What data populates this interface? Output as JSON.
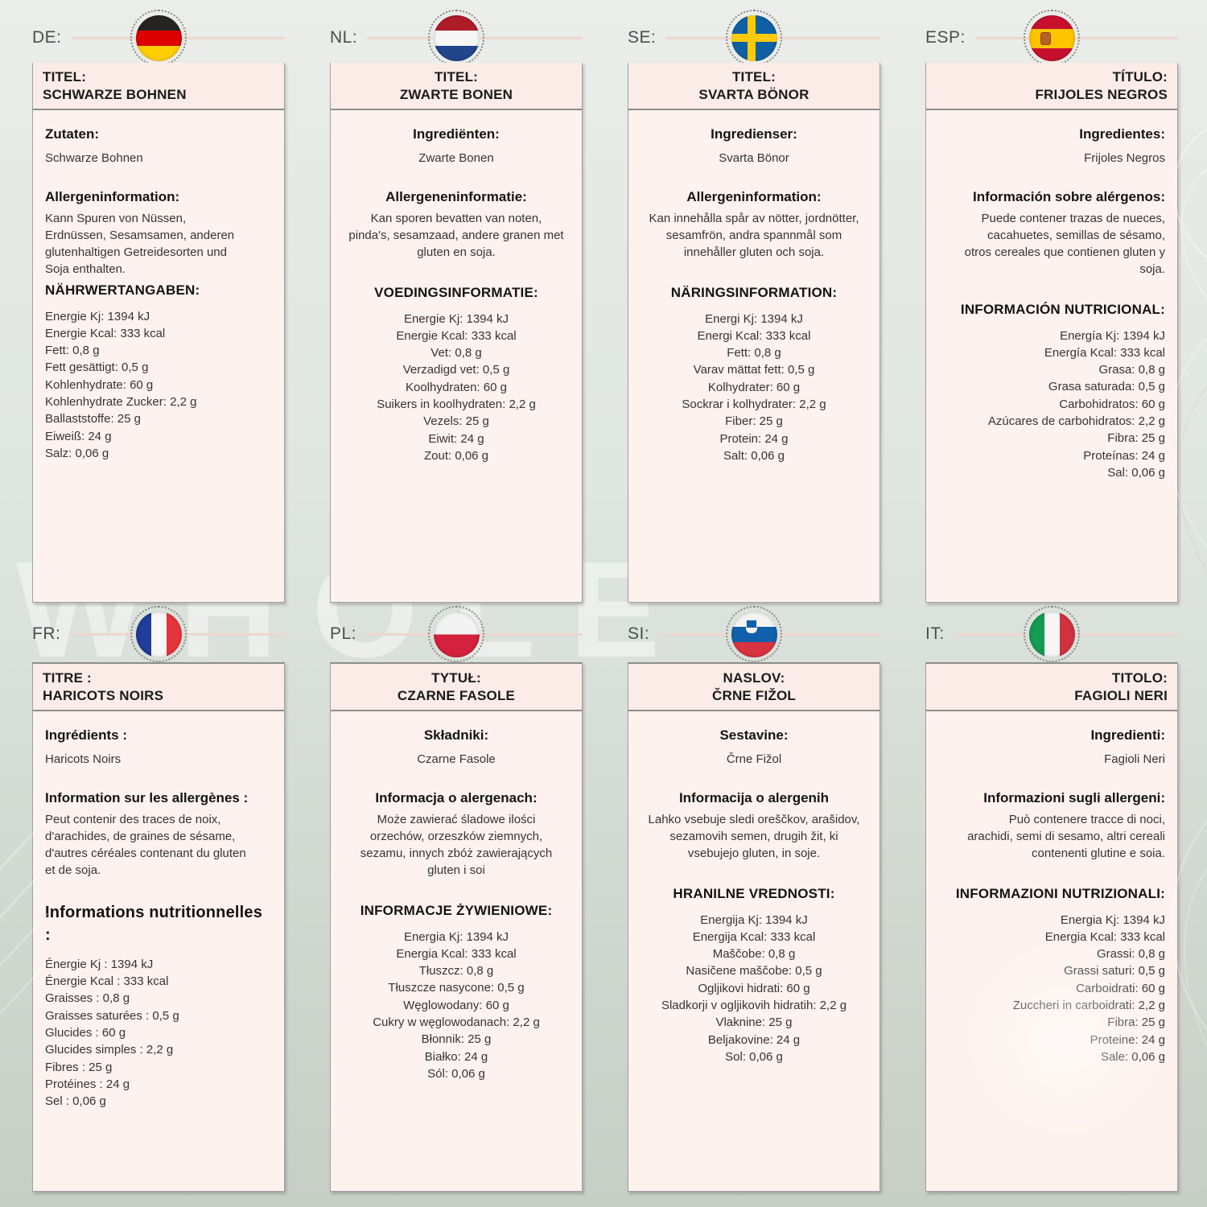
{
  "watermark_text": "WHOLE",
  "colors": {
    "background_top": "#eaede9",
    "background_bottom": "#c6cec6",
    "card_background": "#fdf2ee",
    "card_title_background": "#fbece7",
    "card_border": "#a2a19f",
    "header_line": "#edd6cf",
    "language_label": "#47504a"
  },
  "rows": [
    {
      "cards": [
        {
          "lang_label": "DE:",
          "flag": "germany",
          "title_label": "TITEL:",
          "title": "SCHWARZE BOHNEN",
          "ingredients_label": "Zutaten:",
          "ingredients": "Schwarze Bohnen",
          "allergens_label": "Allergeninformation:",
          "allergens": "Kann Spuren von Nüssen, Erdnüssen, Sesamsamen, anderen glutenhaltigen Getreidesorten und Soja enthalten.",
          "nutrition_label": "NÄHRWERTANGABEN:",
          "nutrition": [
            "Energie Kj: 1394 kJ",
            "Energie Kcal: 333 kcal",
            "Fett: 0,8 g",
            "Fett gesättigt: 0,5 g",
            "Kohlenhydrate: 60 g",
            "Kohlenhydrate Zucker: 2,2 g",
            "Ballaststoffe: 25 g",
            "Eiweiß: 24 g",
            "Salz: 0,06 g"
          ]
        },
        {
          "lang_label": "NL:",
          "flag": "netherlands",
          "title_label": "TITEL:",
          "title": "ZWARTE BONEN",
          "ingredients_label": "Ingrediënten:",
          "ingredients": "Zwarte Bonen",
          "allergens_label": "Allergeneninformatie:",
          "allergens": "Kan sporen bevatten van noten, pinda's, sesamzaad, andere granen met gluten en soja.",
          "nutrition_label": "VOEDINGSINFORMATIE:",
          "nutrition": [
            "Energie Kj: 1394 kJ",
            "Energie Kcal: 333 kcal",
            "Vet: 0,8 g",
            "Verzadigd vet: 0,5 g",
            "Koolhydraten: 60 g",
            "Suikers in koolhydraten: 2,2 g",
            "Vezels: 25 g",
            "Eiwit: 24 g",
            "Zout: 0,06 g"
          ]
        },
        {
          "lang_label": "SE:",
          "flag": "sweden",
          "title_label": "TITEL:",
          "title": "SVARTA BÖNOR",
          "ingredients_label": "Ingredienser:",
          "ingredients": "Svarta Bönor",
          "allergens_label": "Allergeninformation:",
          "allergens": "Kan innehålla spår av nötter, jordnötter, sesamfrön, andra spannmål som innehåller gluten och soja.",
          "nutrition_label": "NÄRINGSINFORMATION:",
          "nutrition": [
            "Energi Kj: 1394 kJ",
            "Energi Kcal: 333 kcal",
            "Fett: 0,8 g",
            "Varav mättat fett: 0,5 g",
            "Kolhydrater: 60 g",
            "Sockrar i kolhydrater: 2,2 g",
            "Fiber: 25 g",
            "Protein: 24 g",
            "Salt: 0,06 g"
          ]
        },
        {
          "lang_label": "ESP:",
          "flag": "spain",
          "title_label": "TÍTULO:",
          "title": "FRIJOLES NEGROS",
          "ingredients_label": "Ingredientes:",
          "ingredients": "Frijoles Negros",
          "allergens_label": "Información sobre alérgenos:",
          "allergens": "Puede contener trazas de nueces, cacahuetes, semillas de sésamo, otros cereales que contienen gluten y soja.",
          "nutrition_label": "INFORMACIÓN NUTRICIONAL:",
          "nutrition": [
            "Energía Kj: 1394 kJ",
            "Energía Kcal: 333 kcal",
            "Grasa: 0,8 g",
            "Grasa saturada: 0,5 g",
            "Carbohidratos: 60 g",
            "Azúcares de carbohidratos: 2,2 g",
            "Fibra: 25 g",
            "Proteínas: 24 g",
            "Sal: 0,06 g"
          ]
        }
      ]
    },
    {
      "cards": [
        {
          "lang_label": "FR:",
          "flag": "france",
          "title_label": "TITRE :",
          "title": "HARICOTS NOIRS",
          "ingredients_label": "Ingrédients :",
          "ingredients": "Haricots Noirs",
          "allergens_label": "Information sur les allergènes :",
          "allergens": "Peut contenir des traces de noix, d'arachides, de graines de sésame, d'autres céréales contenant du gluten et de soja.",
          "nutrition_label": "Informations nutritionnelles :",
          "nutrition": [
            "Énergie Kj : 1394 kJ",
            "Énergie Kcal : 333 kcal",
            "Graisses : 0,8 g",
            "Graisses saturées : 0,5 g",
            "Glucides : 60 g",
            "Glucides simples : 2,2 g",
            "Fibres : 25 g",
            "Protéines : 24 g",
            "Sel : 0,06 g"
          ]
        },
        {
          "lang_label": "PL:",
          "flag": "poland",
          "title_label": "TYTUŁ:",
          "title": "CZARNE FASOLE",
          "ingredients_label": "Składniki:",
          "ingredients": "Czarne Fasole",
          "allergens_label": "Informacja o alergenach:",
          "allergens": "Może zawierać śladowe ilości orzechów, orzeszków ziemnych, sezamu, innych zbóż zawierających gluten i soi",
          "nutrition_label": "INFORMACJE ŻYWIENIOWE:",
          "nutrition": [
            "Energia Kj: 1394 kJ",
            "Energia Kcal: 333 kcal",
            "Tłuszcz: 0,8 g",
            "Tłuszcze nasycone: 0,5 g",
            "Węglowodany: 60 g",
            "Cukry w węglowodanach: 2,2 g",
            "Błonnik: 25 g",
            "Białko: 24 g",
            "Sól: 0,06 g"
          ]
        },
        {
          "lang_label": "SI:",
          "flag": "slovenia",
          "title_label": "NASLOV:",
          "title": "ČRNE FIŽOL",
          "ingredients_label": "Sestavine:",
          "ingredients": "Črne Fižol",
          "allergens_label": "Informacija o alergenih",
          "allergens": "Lahko vsebuje sledi oreščkov, arašidov, sezamovih semen, drugih žit, ki vsebujejo gluten, in soje.",
          "nutrition_label": "HRANILNE VREDNOSTI:",
          "nutrition": [
            "Energija Kj: 1394 kJ",
            "Energija Kcal: 333 kcal",
            "Maščobe: 0,8 g",
            "Nasičene maščobe: 0,5 g",
            "Ogljikovi hidrati: 60 g",
            "Sladkorji v ogljikovih hidratih: 2,2 g",
            "Vlaknine: 25 g",
            "Beljakovine: 24 g",
            "Sol: 0,06 g"
          ]
        },
        {
          "lang_label": "IT:",
          "flag": "italy",
          "title_label": "TITOLO:",
          "title": "FAGIOLI NERI",
          "ingredients_label": "Ingredienti:",
          "ingredients": "Fagioli Neri",
          "allergens_label": "Informazioni sugli allergeni:",
          "allergens": "Può contenere tracce di noci, arachidi, semi di sesamo, altri cereali contenenti glutine e soia.",
          "nutrition_label": "INFORMAZIONI NUTRIZIONALI:",
          "nutrition": [
            "Energia Kj: 1394 kJ",
            "Energia Kcal: 333 kcal",
            "Grassi: 0,8 g",
            "Grassi saturi: 0,5 g",
            "Carboidrati: 60 g",
            "Zuccheri in carboidrati: 2,2 g",
            "Fibra: 25 g",
            "Proteine: 24 g",
            "Sale: 0,06 g"
          ]
        }
      ]
    }
  ]
}
